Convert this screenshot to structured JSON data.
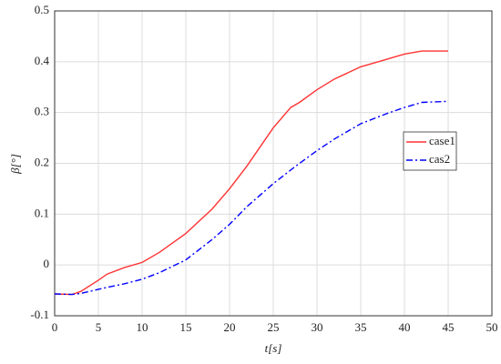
{
  "chart_data": {
    "type": "line",
    "xlabel": "t[s]",
    "ylabel": "β[°]",
    "x": [
      0,
      2,
      3,
      5,
      6,
      8,
      10,
      12,
      15,
      18,
      20,
      22,
      25,
      27,
      28,
      30,
      32,
      35,
      38,
      40,
      42,
      45
    ],
    "series": [
      {
        "name": "case1",
        "color": "#ff3333",
        "linestyle": "solid",
        "values": [
          -0.057,
          -0.058,
          -0.052,
          -0.03,
          -0.018,
          -0.005,
          0.005,
          0.025,
          0.062,
          0.11,
          0.15,
          0.195,
          0.27,
          0.31,
          0.32,
          0.345,
          0.366,
          0.39,
          0.405,
          0.415,
          0.421,
          0.421
        ]
      },
      {
        "name": "cas2",
        "color": "#0000ff",
        "linestyle": "dashdot",
        "values": [
          -0.057,
          -0.058,
          -0.056,
          -0.048,
          -0.044,
          -0.037,
          -0.028,
          -0.015,
          0.01,
          0.05,
          0.08,
          0.115,
          0.16,
          0.187,
          0.2,
          0.225,
          0.248,
          0.278,
          0.298,
          0.31,
          0.32,
          0.322
        ]
      }
    ],
    "xlim": [
      0,
      50
    ],
    "xticks": [
      0,
      5,
      10,
      15,
      20,
      25,
      30,
      35,
      40,
      45,
      50
    ],
    "ylim": [
      -0.1,
      0.5
    ],
    "yticks": [
      -0.1,
      0,
      0.1,
      0.2,
      0.3,
      0.4,
      0.5
    ],
    "grid": true,
    "legend": "right"
  }
}
